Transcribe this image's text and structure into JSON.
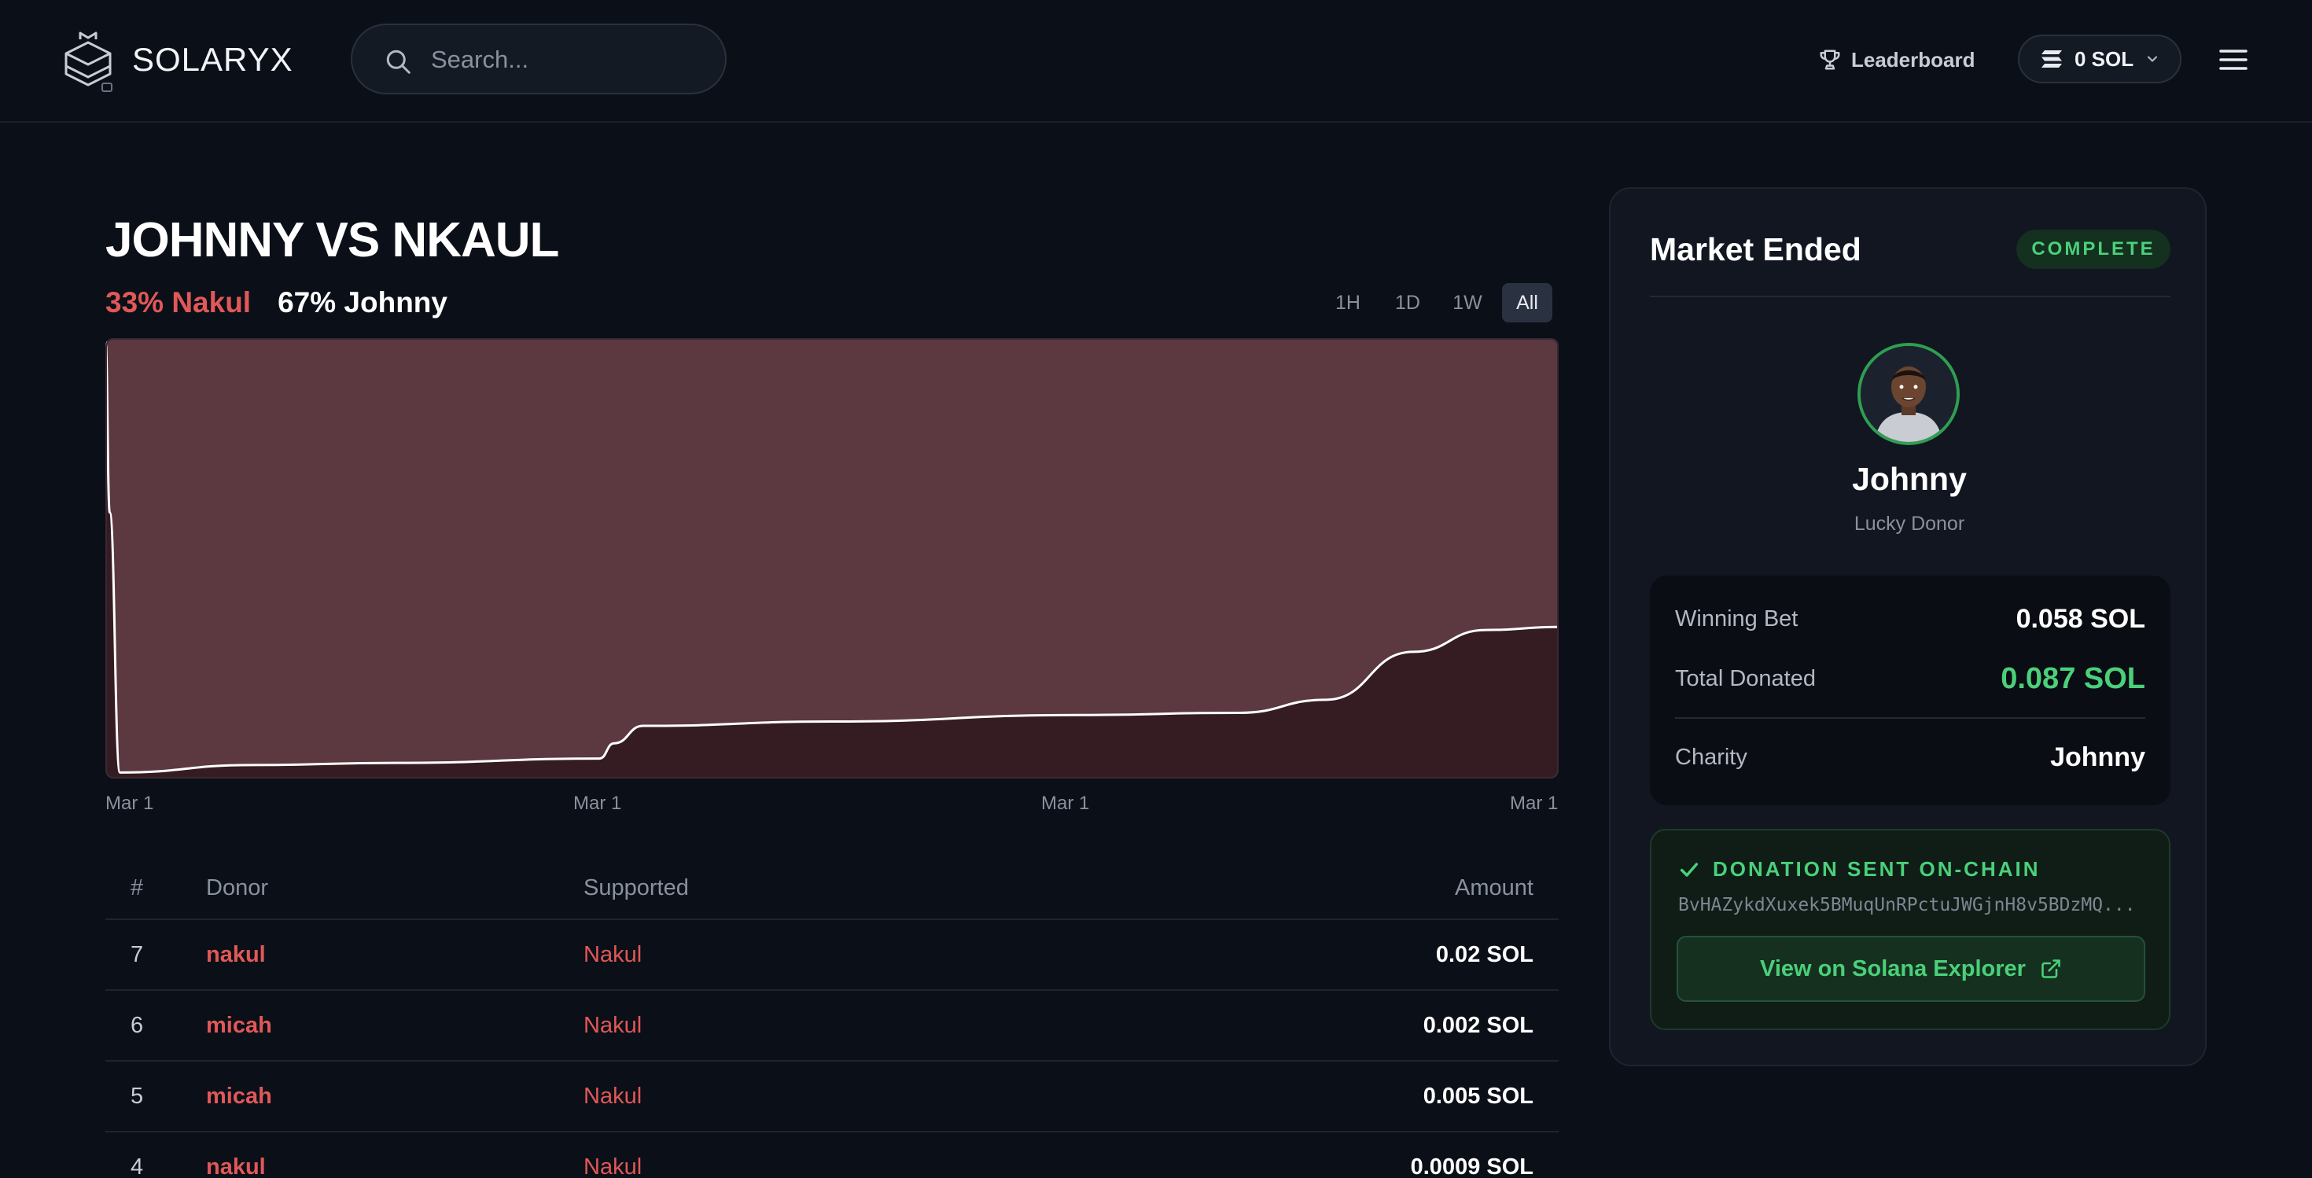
{
  "header": {
    "brand": "SOLARYX",
    "search_placeholder": "Search...",
    "leaderboard_label": "Leaderboard",
    "wallet_balance": "0 SOL"
  },
  "market": {
    "title": "JOHNNY VS NKAUL",
    "odds_nakul": "33% Nakul",
    "odds_johnny": "67% Johnny",
    "ranges": [
      "1H",
      "1D",
      "1W",
      "All"
    ],
    "active_range": "All"
  },
  "chart_data": {
    "type": "area",
    "x_tick_labels": [
      "Mar 1",
      "Mar 1",
      "Mar 1",
      "Mar 1"
    ],
    "x": [
      0,
      0.003,
      0.01,
      0.1,
      0.2,
      0.34,
      0.35,
      0.37,
      0.5,
      0.67,
      0.78,
      0.84,
      0.9,
      0.95,
      1.0
    ],
    "series": [
      {
        "values": [
          1.0,
          0.6,
          0.003,
          0.02,
          0.025,
          0.035,
          0.07,
          0.11,
          0.12,
          0.135,
          0.14,
          0.17,
          0.28,
          0.33,
          0.337
        ]
      }
    ],
    "ylim": [
      0,
      1
    ],
    "grid": false,
    "colors": {
      "upper": "#5c3840",
      "lower": "#351c22",
      "line": "#ffffff"
    }
  },
  "donations": {
    "columns": [
      "#",
      "Donor",
      "Supported",
      "Amount"
    ],
    "rows": [
      {
        "num": "7",
        "donor": "nakul",
        "supported": "Nakul",
        "amount": "0.02 SOL"
      },
      {
        "num": "6",
        "donor": "micah",
        "supported": "Nakul",
        "amount": "0.002 SOL"
      },
      {
        "num": "5",
        "donor": "micah",
        "supported": "Nakul",
        "amount": "0.005 SOL"
      },
      {
        "num": "4",
        "donor": "nakul",
        "supported": "Nakul",
        "amount": "0.0009 SOL"
      }
    ]
  },
  "panel": {
    "title": "Market Ended",
    "status": "COMPLETE",
    "winner_name": "Johnny",
    "winner_role": "Lucky Donor",
    "winning_bet_label": "Winning Bet",
    "winning_bet_value": "0.058 SOL",
    "total_donated_label": "Total Donated",
    "total_donated_value": "0.087 SOL",
    "charity_label": "Charity",
    "charity_value": "Johnny",
    "donation_title": "DONATION SENT ON-CHAIN",
    "tx_hash": "BvHAZykdXuxek5BMuqUnRPctuJWGjnH8v5BDzMQ...",
    "explorer_button": "View on Solana Explorer"
  },
  "colors": {
    "background": "#0b0f17",
    "accent_red": "#e05858",
    "accent_green": "#4ad07a"
  }
}
